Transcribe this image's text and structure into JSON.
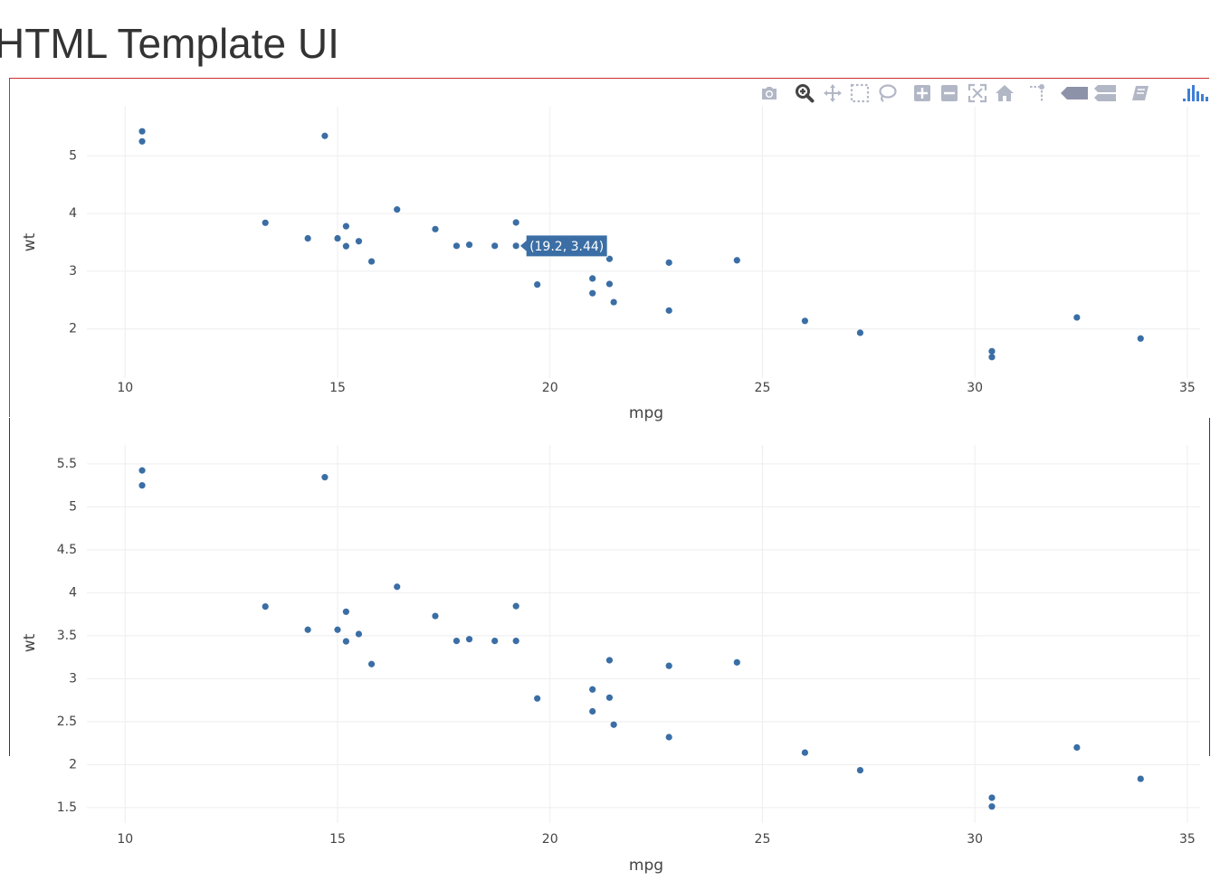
{
  "page": {
    "title": "HTML Template UI"
  },
  "toolbar": {
    "buttons": [
      {
        "name": "camera-icon",
        "label": "Download plot as a png"
      },
      {
        "name": "zoom-icon",
        "label": "Zoom"
      },
      {
        "name": "pan-icon",
        "label": "Pan"
      },
      {
        "name": "box-select-icon",
        "label": "Box Select"
      },
      {
        "name": "lasso-select-icon",
        "label": "Lasso Select"
      },
      {
        "name": "zoom-in-icon",
        "label": "Zoom in"
      },
      {
        "name": "zoom-out-icon",
        "label": "Zoom out"
      },
      {
        "name": "autoscale-icon",
        "label": "Autoscale"
      },
      {
        "name": "reset-axes-icon",
        "label": "Reset axes"
      },
      {
        "name": "spike-lines-icon",
        "label": "Toggle Spike Lines"
      },
      {
        "name": "hover-closest-icon",
        "label": "Show closest data on hover"
      },
      {
        "name": "hover-compare-icon",
        "label": "Compare data on hover"
      },
      {
        "name": "edit-chart-icon",
        "label": "Edit chart"
      },
      {
        "name": "plotly-logo-icon",
        "label": "Produced with Plotly"
      }
    ],
    "active_color": "#444444",
    "inactive_color": "#b2b7c6",
    "logo_color": "#3f4f75"
  },
  "chart_data": [
    {
      "type": "scatter",
      "xlabel": "mpg",
      "ylabel": "wt",
      "xlim": [
        9.1,
        35.3
      ],
      "ylim": [
        1.15,
        5.85
      ],
      "xticks": [
        10,
        15,
        20,
        25,
        30,
        35
      ],
      "yticks": [
        2,
        3,
        4,
        5
      ],
      "grid": true,
      "marker_color": "#3a6ea5",
      "hover": {
        "x": 19.2,
        "y": 3.44,
        "text": "(19.2, 3.44)"
      },
      "points": {
        "x": [
          21.0,
          21.0,
          22.8,
          21.4,
          18.7,
          18.1,
          14.3,
          24.4,
          22.8,
          19.2,
          17.8,
          16.4,
          17.3,
          15.2,
          10.4,
          10.4,
          14.7,
          32.4,
          30.4,
          33.9,
          21.5,
          15.5,
          15.2,
          13.3,
          19.2,
          27.3,
          26.0,
          30.4,
          15.8,
          19.7,
          15.0,
          21.4
        ],
        "y": [
          2.62,
          2.875,
          2.32,
          3.215,
          3.44,
          3.46,
          3.57,
          3.19,
          3.15,
          3.44,
          3.44,
          4.07,
          3.73,
          3.78,
          5.25,
          5.424,
          5.345,
          2.2,
          1.615,
          1.835,
          2.465,
          3.52,
          3.435,
          3.84,
          3.845,
          1.935,
          2.14,
          1.513,
          3.17,
          2.77,
          3.57,
          2.78
        ]
      }
    },
    {
      "type": "scatter",
      "xlabel": "mpg",
      "ylabel": "wt",
      "xlim": [
        9.1,
        35.3
      ],
      "ylim": [
        1.32,
        5.72
      ],
      "xticks": [
        10,
        15,
        20,
        25,
        30,
        35
      ],
      "yticks": [
        1.5,
        2,
        2.5,
        3,
        3.5,
        4,
        4.5,
        5,
        5.5
      ],
      "grid": true,
      "marker_color": "#3a6ea5",
      "points": {
        "x": [
          21.0,
          21.0,
          22.8,
          21.4,
          18.7,
          18.1,
          14.3,
          24.4,
          22.8,
          19.2,
          17.8,
          16.4,
          17.3,
          15.2,
          10.4,
          10.4,
          14.7,
          32.4,
          30.4,
          33.9,
          21.5,
          15.5,
          15.2,
          13.3,
          19.2,
          27.3,
          26.0,
          30.4,
          15.8,
          19.7,
          15.0,
          21.4
        ],
        "y": [
          2.62,
          2.875,
          2.32,
          3.215,
          3.44,
          3.46,
          3.57,
          3.19,
          3.15,
          3.44,
          3.44,
          4.07,
          3.73,
          3.78,
          5.25,
          5.424,
          5.345,
          2.2,
          1.615,
          1.835,
          2.465,
          3.52,
          3.435,
          3.84,
          3.845,
          1.935,
          2.14,
          1.513,
          3.17,
          2.77,
          3.57,
          2.78
        ]
      }
    }
  ]
}
